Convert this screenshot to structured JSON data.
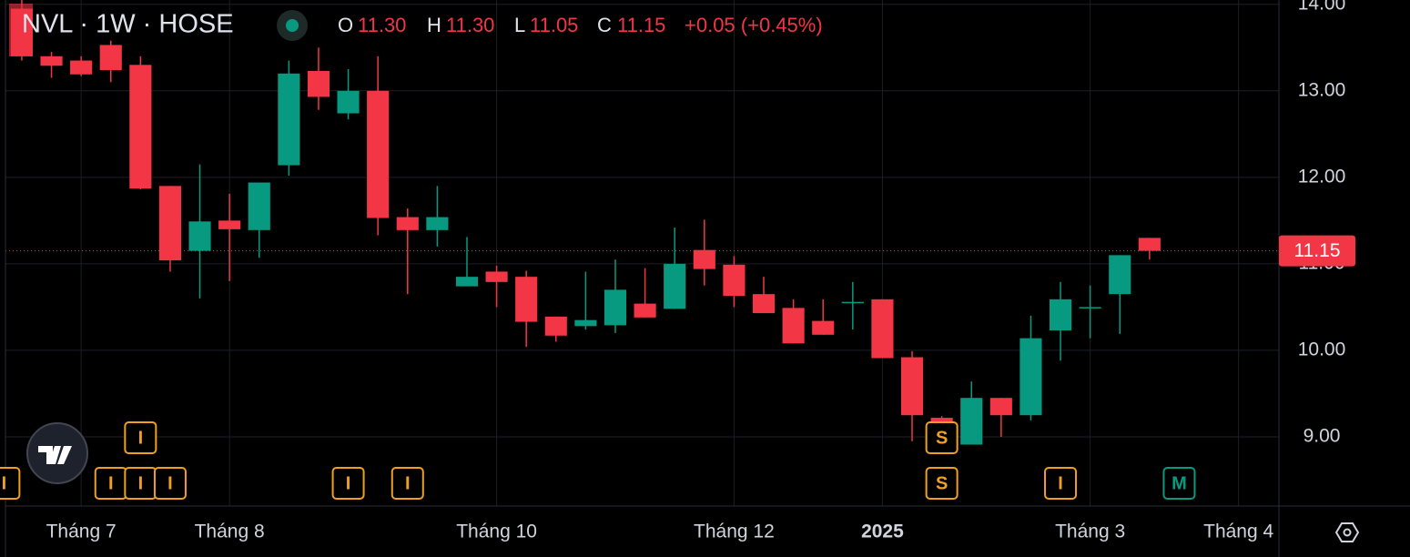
{
  "chart_data": {
    "type": "candlestick",
    "title": "NVL · 1W · HOSE",
    "ohlc": [
      {
        "key": "O",
        "text": "11.30"
      },
      {
        "key": "H",
        "text": "11.30"
      },
      {
        "key": "L",
        "text": "11.05"
      },
      {
        "key": "C",
        "text": "11.15"
      }
    ],
    "change": "+0.05 (+0.45%)",
    "up_color": "#089981",
    "down_color": "#f23645",
    "open": [
      13.95,
      13.4,
      13.35,
      13.53,
      13.3,
      11.9,
      11.15,
      11.5,
      11.39,
      12.14,
      13.23,
      12.74,
      13.0,
      11.54,
      11.39,
      10.74,
      10.91,
      10.85,
      10.39,
      10.28,
      10.29,
      10.54,
      10.48,
      11.16,
      10.99,
      10.65,
      10.49,
      10.34,
      10.55,
      10.59,
      9.92,
      9.22,
      8.91,
      9.45,
      9.25,
      10.23,
      10.49,
      10.65,
      11.3
    ],
    "high": [
      14.05,
      13.45,
      13.4,
      13.58,
      13.4,
      11.9,
      12.15,
      11.81,
      11.94,
      13.35,
      13.5,
      13.25,
      13.4,
      11.64,
      11.9,
      11.31,
      10.98,
      10.92,
      10.39,
      10.91,
      11.05,
      10.95,
      11.42,
      11.51,
      11.09,
      10.85,
      10.59,
      10.59,
      10.79,
      10.59,
      9.99,
      9.24,
      9.64,
      9.45,
      10.4,
      10.79,
      10.75,
      11.1,
      11.3
    ],
    "low": [
      13.35,
      13.15,
      13.17,
      13.1,
      11.86,
      10.91,
      10.6,
      10.8,
      11.07,
      12.02,
      12.78,
      12.67,
      11.33,
      10.65,
      11.2,
      10.74,
      10.5,
      10.04,
      10.1,
      10.24,
      10.2,
      10.38,
      10.48,
      10.75,
      10.5,
      10.43,
      10.08,
      10.18,
      10.24,
      9.91,
      8.95,
      8.9,
      8.91,
      9.0,
      9.19,
      9.88,
      10.14,
      10.19,
      11.05
    ],
    "close": [
      13.4,
      13.29,
      13.19,
      13.24,
      11.87,
      11.04,
      11.49,
      11.4,
      11.94,
      13.2,
      12.93,
      13.0,
      11.53,
      11.39,
      11.54,
      10.85,
      10.79,
      10.33,
      10.17,
      10.35,
      10.7,
      10.38,
      11.0,
      10.94,
      10.63,
      10.43,
      10.08,
      10.18,
      10.56,
      9.91,
      9.25,
      9.1,
      9.45,
      9.25,
      10.14,
      10.59,
      10.5,
      11.1,
      11.15
    ],
    "xlim": [
      -0.55,
      42.36
    ],
    "xticks": [
      {
        "value": 2,
        "label": "Tháng 7"
      },
      {
        "value": 7,
        "label": "Tháng 8"
      },
      {
        "value": 16,
        "label": "Tháng 10"
      },
      {
        "value": 24,
        "label": "Tháng 12"
      },
      {
        "value": 29,
        "label": "2025"
      },
      {
        "value": 36,
        "label": "Tháng 3"
      },
      {
        "value": 41,
        "label": "Tháng 4"
      }
    ],
    "ylim": [
      8.2,
      14.05
    ],
    "yticks": [
      {
        "value": 9,
        "label": "9.00"
      },
      {
        "value": 10,
        "label": "10.00"
      },
      {
        "value": 11,
        "label": "11.00"
      },
      {
        "value": 12,
        "label": "12.00"
      },
      {
        "value": 13,
        "label": "13.00"
      },
      {
        "value": 14,
        "label": "14.00"
      }
    ],
    "last_price": {
      "value": 11.15,
      "label": "11.15"
    },
    "grid": true,
    "events": [
      {
        "label": "I",
        "at": -0.6
      },
      {
        "label": "I",
        "at": 3
      },
      {
        "label": "I",
        "at": 4
      },
      {
        "label": "I",
        "at": 4
      },
      {
        "label": "I",
        "at": 5
      },
      {
        "label": "I",
        "at": 11
      },
      {
        "label": "I",
        "at": 13
      },
      {
        "label": "S",
        "at": 31
      },
      {
        "label": "S",
        "at": 31
      },
      {
        "label": "I",
        "at": 35
      },
      {
        "label": "M",
        "at": 39
      }
    ]
  }
}
